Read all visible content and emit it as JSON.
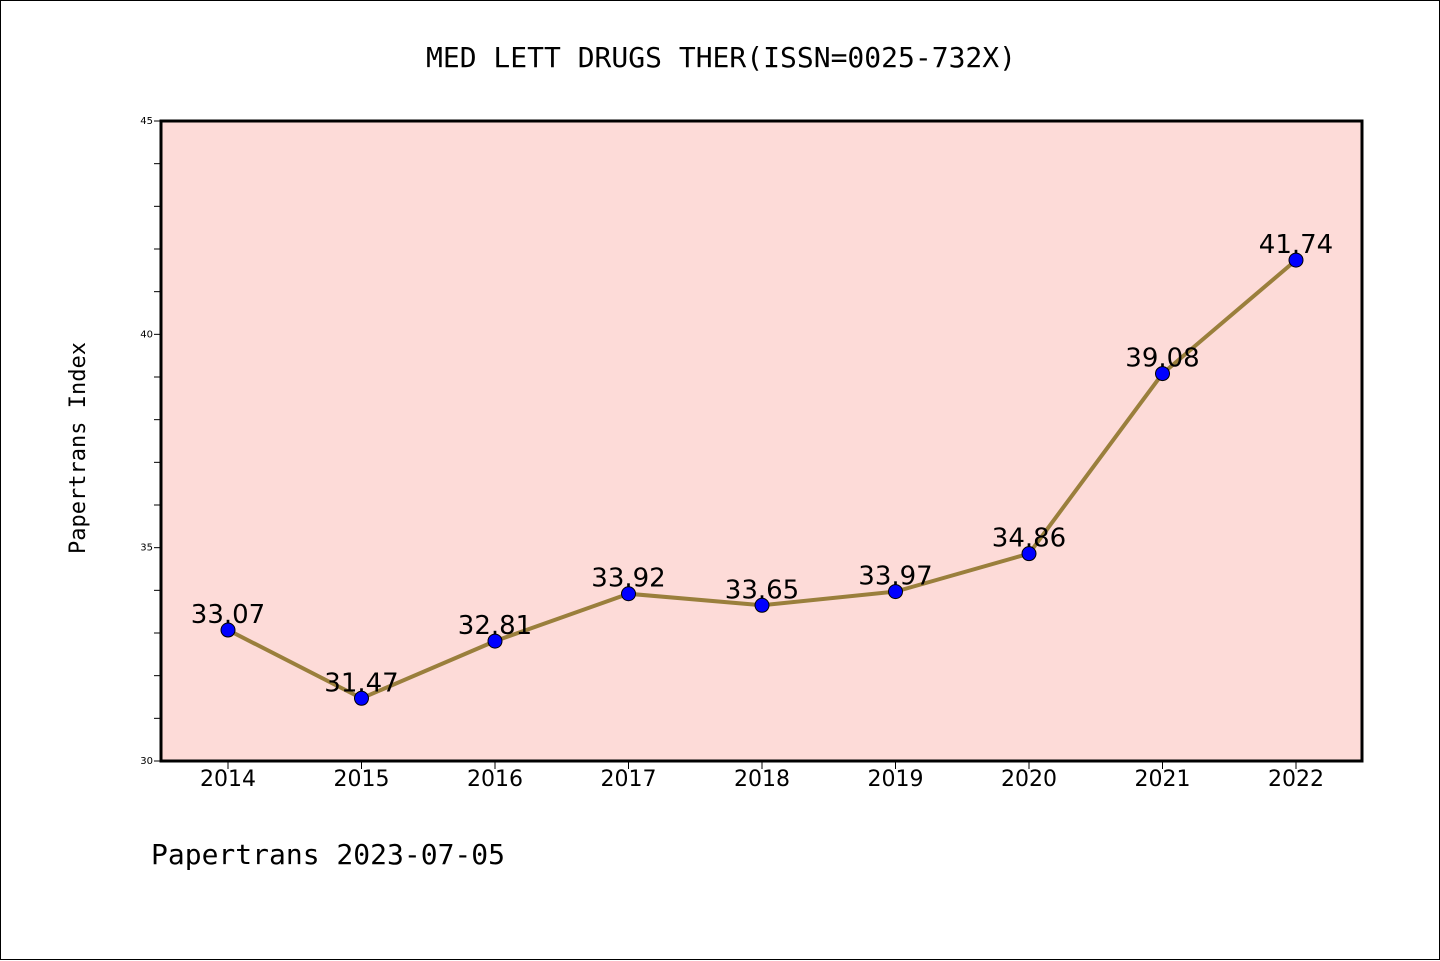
{
  "chart_data": {
    "type": "line",
    "title": "MED LETT DRUGS THER(ISSN=0025-732X)",
    "ylabel": "Papertrans Index",
    "xlabel": "",
    "categories": [
      "2014",
      "2015",
      "2016",
      "2017",
      "2018",
      "2019",
      "2020",
      "2021",
      "2022"
    ],
    "series": [
      {
        "values": [
          33.07,
          31.47,
          32.81,
          33.92,
          33.65,
          33.97,
          34.86,
          39.08,
          41.74
        ],
        "labels": [
          "33.07",
          "31.47",
          "32.81",
          "33.92",
          "33.65",
          "33.97",
          "34.86",
          "39.08",
          "41.74"
        ]
      }
    ],
    "ylim": [
      30,
      45
    ],
    "yticks": [
      "30",
      "35",
      "40",
      "45"
    ],
    "grid": false,
    "colors": {
      "plot_background": "#fddbd8",
      "line": "#9a7f3c",
      "marker": "#0000ff"
    }
  },
  "footer": "Papertrans 2023-07-05"
}
